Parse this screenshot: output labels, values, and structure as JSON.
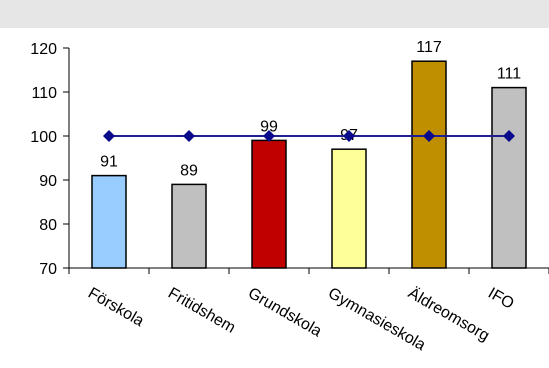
{
  "chart_data": {
    "type": "bar",
    "categories": [
      "Förskola",
      "Fritidshem",
      "Grundskola",
      "Gymnasieskola",
      "Äldreomsorg",
      "IFO"
    ],
    "values": [
      91,
      89,
      99,
      97,
      117,
      111
    ],
    "data_labels": [
      "91",
      "89",
      "99",
      "97",
      "117",
      "111"
    ],
    "bar_colors": [
      "#99ccff",
      "#c0c0c0",
      "#c00000",
      "#ffff99",
      "#bf8f00",
      "#c0c0c0"
    ],
    "ylim": [
      70,
      120
    ],
    "yticks": [
      70,
      80,
      90,
      100,
      110,
      120
    ],
    "ytick_labels": [
      "70",
      "80",
      "90",
      "100",
      "110",
      "120"
    ],
    "reference_line": {
      "value": 100,
      "color": "#1f1f8f",
      "marker": "diamond"
    },
    "grid": false,
    "legend": "none",
    "title": "",
    "xlabel": "",
    "ylabel": ""
  }
}
